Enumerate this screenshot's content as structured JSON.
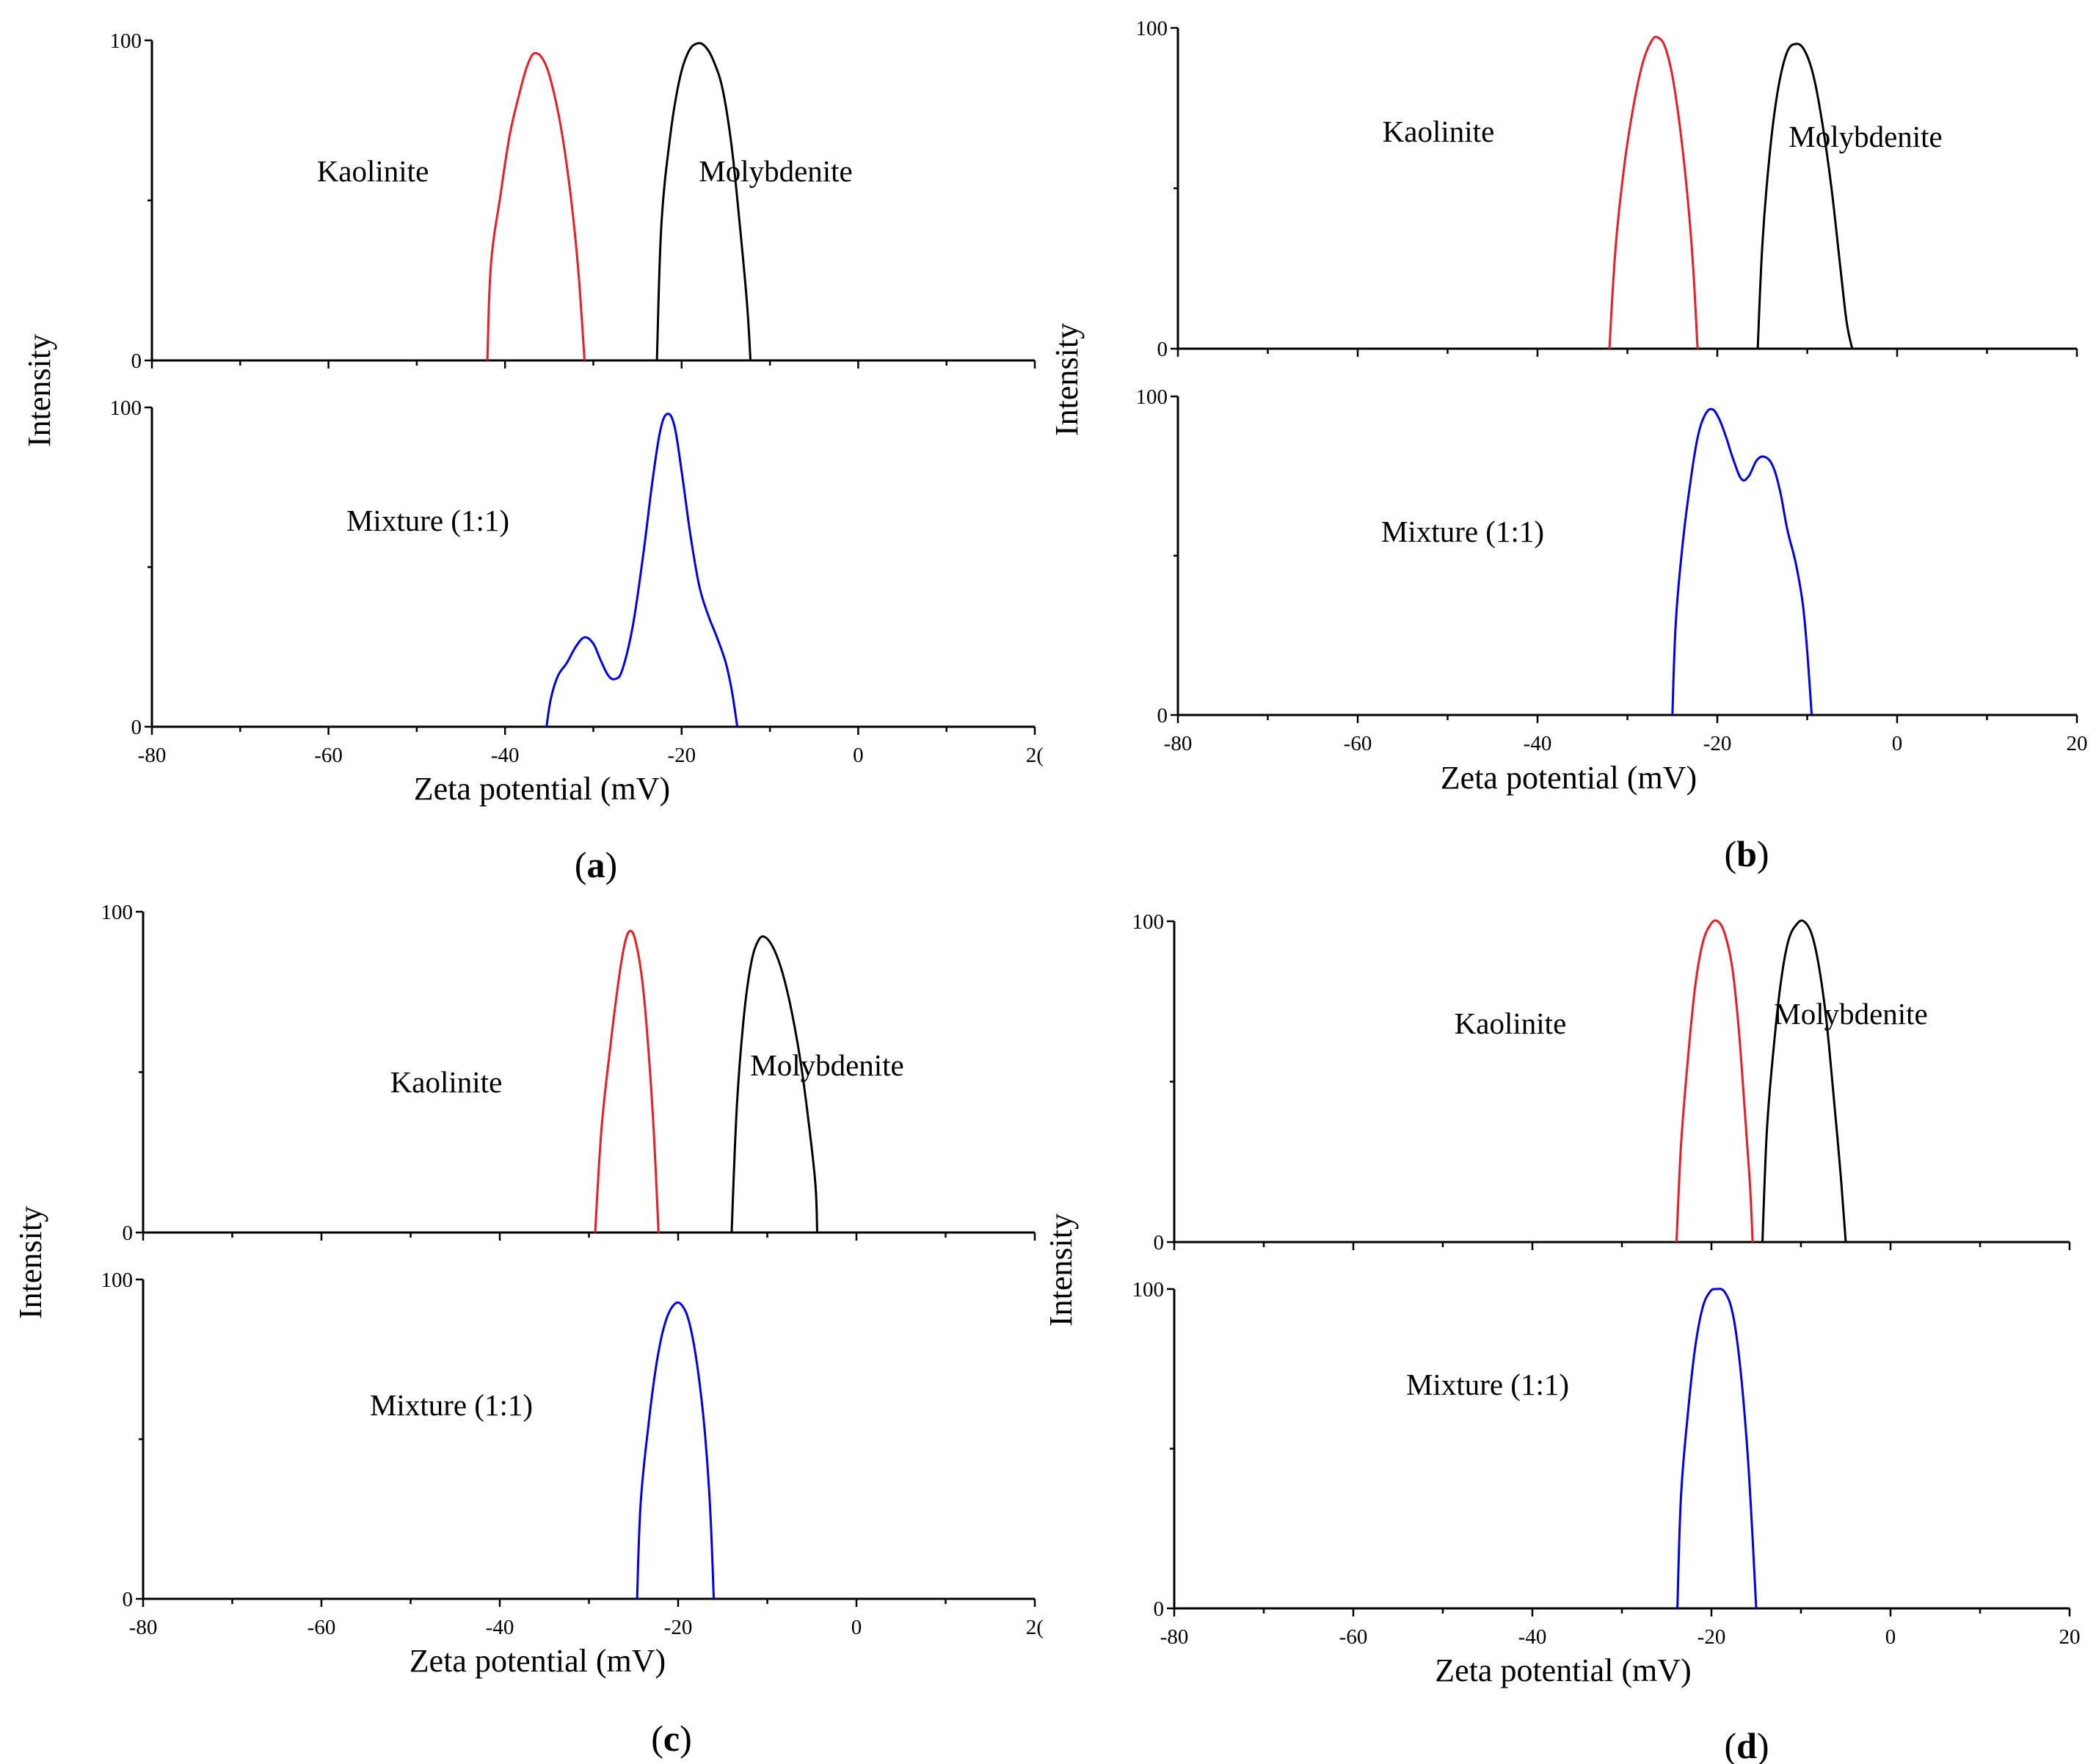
{
  "colors": {
    "kaolinite": "#ed1c24",
    "molybdenite": "#000000",
    "mixture": "#0000ee",
    "axis": "#000000"
  },
  "chart_data": [
    {
      "panel": "a",
      "type": "line",
      "xlabel": "Zeta potential (mV)",
      "ylabel": "Intensity",
      "xlim": [
        -80,
        20
      ],
      "x_tick_labels": [
        "-80",
        "-60",
        "-40",
        "-20",
        "0",
        "2("
      ],
      "top": {
        "ylim": [
          0,
          100
        ],
        "y_tick_labels": [
          "0",
          "100"
        ],
        "series": [
          {
            "name": "Kaolinite",
            "color": "#ed1c24",
            "points": [
              [
                -42,
                0
              ],
              [
                -41.6,
                30
              ],
              [
                -40.5,
                52
              ],
              [
                -39.5,
                70
              ],
              [
                -38.5,
                82
              ],
              [
                -37.5,
                92
              ],
              [
                -36.6,
                96
              ],
              [
                -35.5,
                93
              ],
              [
                -34.5,
                84
              ],
              [
                -33.5,
                70
              ],
              [
                -32.5,
                50
              ],
              [
                -31.7,
                28
              ],
              [
                -31,
                0
              ]
            ]
          },
          {
            "name": "Molybdenite",
            "color": "#000000",
            "points": [
              [
                -22.8,
                0
              ],
              [
                -22.3,
                42
              ],
              [
                -21.3,
                70
              ],
              [
                -20.3,
                87
              ],
              [
                -19.3,
                96
              ],
              [
                -18.3,
                99
              ],
              [
                -17.3,
                98
              ],
              [
                -16.3,
                93
              ],
              [
                -15.3,
                84
              ],
              [
                -14.3,
                66
              ],
              [
                -13.4,
                42
              ],
              [
                -12.6,
                18
              ],
              [
                -12.2,
                0
              ]
            ]
          }
        ]
      },
      "bottom": {
        "ylim": [
          0,
          100
        ],
        "y_tick_labels": [
          "0",
          "100"
        ],
        "series": [
          {
            "name": "Mixture (1:1)",
            "color": "#0000ee",
            "points": [
              [
                -35.3,
                0
              ],
              [
                -34.8,
                9
              ],
              [
                -34,
                16
              ],
              [
                -33,
                20
              ],
              [
                -32,
                25
              ],
              [
                -31,
                28
              ],
              [
                -30,
                26
              ],
              [
                -29.2,
                21
              ],
              [
                -28.3,
                16
              ],
              [
                -27.5,
                15
              ],
              [
                -26.7,
                18
              ],
              [
                -25.5,
                32
              ],
              [
                -24.3,
                55
              ],
              [
                -23.3,
                77
              ],
              [
                -22.4,
                93
              ],
              [
                -21.6,
                98
              ],
              [
                -20.8,
                94
              ],
              [
                -20,
                80
              ],
              [
                -19,
                60
              ],
              [
                -18,
                44
              ],
              [
                -17,
                35
              ],
              [
                -16,
                28
              ],
              [
                -15,
                20
              ],
              [
                -14.3,
                11
              ],
              [
                -13.7,
                0
              ]
            ]
          }
        ]
      },
      "annotations": [
        "Kaolinite",
        "Molybdenite",
        "Mixture (1:1)"
      ],
      "panel_label": "a"
    },
    {
      "panel": "b",
      "type": "line",
      "xlabel": "Zeta potential (mV)",
      "ylabel": "Intensity",
      "xlim": [
        -80,
        20
      ],
      "x_tick_labels": [
        "-80",
        "-60",
        "-40",
        "-20",
        "0",
        "20"
      ],
      "top": {
        "ylim": [
          0,
          100
        ],
        "y_tick_labels": [
          "0",
          "100"
        ],
        "series": [
          {
            "name": "Kaolinite",
            "color": "#ed1c24",
            "points": [
              [
                -32,
                0
              ],
              [
                -31.3,
                32
              ],
              [
                -30.3,
                58
              ],
              [
                -29.3,
                76
              ],
              [
                -28.3,
                89
              ],
              [
                -27.3,
                96
              ],
              [
                -26.6,
                97
              ],
              [
                -25.8,
                94
              ],
              [
                -25,
                85
              ],
              [
                -24.2,
                70
              ],
              [
                -23.4,
                50
              ],
              [
                -22.7,
                26
              ],
              [
                -22.2,
                0
              ]
            ]
          },
          {
            "name": "Molybdenite",
            "color": "#000000",
            "points": [
              [
                -15.5,
                0
              ],
              [
                -15,
                32
              ],
              [
                -14.2,
                60
              ],
              [
                -13.3,
                80
              ],
              [
                -12.3,
                92
              ],
              [
                -11.3,
                95
              ],
              [
                -10.3,
                93
              ],
              [
                -9.3,
                85
              ],
              [
                -8.3,
                70
              ],
              [
                -7.3,
                50
              ],
              [
                -6.3,
                25
              ],
              [
                -5.6,
                8
              ],
              [
                -5,
                0
              ]
            ]
          }
        ]
      },
      "bottom": {
        "ylim": [
          0,
          100
        ],
        "y_tick_labels": [
          "0",
          "100"
        ],
        "series": [
          {
            "name": "Mixture (1:1)",
            "color": "#0000ee",
            "points": [
              [
                -25,
                0
              ],
              [
                -24.6,
                30
              ],
              [
                -23.8,
                55
              ],
              [
                -23,
                73
              ],
              [
                -22.2,
                87
              ],
              [
                -21.4,
                94
              ],
              [
                -20.6,
                96
              ],
              [
                -19.8,
                93
              ],
              [
                -19,
                87
              ],
              [
                -18.2,
                80
              ],
              [
                -17.3,
                74
              ],
              [
                -16.5,
                75
              ],
              [
                -15.6,
                80
              ],
              [
                -14.7,
                81
              ],
              [
                -13.8,
                78
              ],
              [
                -13,
                70
              ],
              [
                -12.2,
                58
              ],
              [
                -11.3,
                48
              ],
              [
                -10.5,
                35
              ],
              [
                -10,
                20
              ],
              [
                -9.5,
                0
              ]
            ]
          }
        ]
      },
      "annotations": [
        "Kaolinite",
        "Molybdenite",
        "Mixture (1:1)"
      ],
      "panel_label": "b"
    },
    {
      "panel": "c",
      "type": "line",
      "xlabel": "Zeta potential (mV)",
      "ylabel": "Intensity",
      "xlim": [
        -80,
        20
      ],
      "x_tick_labels": [
        "-80",
        "-60",
        "-40",
        "-20",
        "0",
        "2("
      ],
      "top": {
        "ylim": [
          0,
          100
        ],
        "y_tick_labels": [
          "0",
          "100"
        ],
        "series": [
          {
            "name": "Kaolinite",
            "color": "#ed1c24",
            "points": [
              [
                -29.3,
                0
              ],
              [
                -28.6,
                32
              ],
              [
                -27.6,
                58
              ],
              [
                -26.6,
                80
              ],
              [
                -25.9,
                91
              ],
              [
                -25.3,
                94
              ],
              [
                -24.7,
                90
              ],
              [
                -24,
                78
              ],
              [
                -23.3,
                56
              ],
              [
                -22.7,
                30
              ],
              [
                -22.2,
                0
              ]
            ]
          },
          {
            "name": "Molybdenite",
            "color": "#000000",
            "points": [
              [
                -14,
                0
              ],
              [
                -13.4,
                40
              ],
              [
                -12.6,
                68
              ],
              [
                -11.8,
                84
              ],
              [
                -11,
                91
              ],
              [
                -10.2,
                92
              ],
              [
                -9.2,
                88
              ],
              [
                -8.2,
                80
              ],
              [
                -7.2,
                68
              ],
              [
                -6.2,
                52
              ],
              [
                -5.3,
                33
              ],
              [
                -4.6,
                15
              ],
              [
                -4.4,
                0
              ]
            ]
          }
        ]
      },
      "bottom": {
        "ylim": [
          0,
          100
        ],
        "y_tick_labels": [
          "0",
          "100"
        ],
        "series": [
          {
            "name": "Mixture (1:1)",
            "color": "#0000ee",
            "points": [
              [
                -24.6,
                0
              ],
              [
                -24.2,
                30
              ],
              [
                -23.3,
                55
              ],
              [
                -22.4,
                74
              ],
              [
                -21.5,
                86
              ],
              [
                -20.5,
                92
              ],
              [
                -19.6,
                92
              ],
              [
                -18.7,
                86
              ],
              [
                -17.8,
                72
              ],
              [
                -17,
                52
              ],
              [
                -16.4,
                28
              ],
              [
                -16,
                0
              ]
            ]
          }
        ]
      },
      "annotations": [
        "Kaolinite",
        "Molybdenite",
        "Mixture (1:1)"
      ],
      "panel_label": "c"
    },
    {
      "panel": "d",
      "type": "line",
      "xlabel": "Zeta potential (mV)",
      "ylabel": "Intensity",
      "xlim": [
        -80,
        20
      ],
      "x_tick_labels": [
        "-80",
        "-60",
        "-40",
        "-20",
        "0",
        "20"
      ],
      "top": {
        "ylim": [
          0,
          100
        ],
        "y_tick_labels": [
          "0",
          "100"
        ],
        "series": [
          {
            "name": "Kaolinite",
            "color": "#ed1c24",
            "points": [
              [
                -23.9,
                0
              ],
              [
                -23.4,
                30
              ],
              [
                -22.6,
                58
              ],
              [
                -21.8,
                80
              ],
              [
                -21,
                93
              ],
              [
                -20.1,
                99
              ],
              [
                -19.3,
                100
              ],
              [
                -18.5,
                96
              ],
              [
                -17.7,
                86
              ],
              [
                -17,
                68
              ],
              [
                -16.3,
                42
              ],
              [
                -15.7,
                18
              ],
              [
                -15.4,
                0
              ]
            ]
          },
          {
            "name": "Molybdenite",
            "color": "#000000",
            "points": [
              [
                -14.3,
                0
              ],
              [
                -13.8,
                35
              ],
              [
                -13,
                62
              ],
              [
                -12.2,
                82
              ],
              [
                -11.4,
                94
              ],
              [
                -10.5,
                99
              ],
              [
                -9.7,
                100
              ],
              [
                -8.8,
                96
              ],
              [
                -8,
                86
              ],
              [
                -7.2,
                70
              ],
              [
                -6.4,
                47
              ],
              [
                -5.6,
                22
              ],
              [
                -5,
                0
              ]
            ]
          }
        ]
      },
      "bottom": {
        "ylim": [
          0,
          100
        ],
        "y_tick_labels": [
          "0",
          "100"
        ],
        "series": [
          {
            "name": "Mixture (1:1)",
            "color": "#0000ee",
            "points": [
              [
                -23.8,
                0
              ],
              [
                -23.4,
                35
              ],
              [
                -22.6,
                62
              ],
              [
                -21.8,
                82
              ],
              [
                -21,
                94
              ],
              [
                -20.2,
                99
              ],
              [
                -19.5,
                100
              ],
              [
                -18.5,
                99
              ],
              [
                -17.6,
                92
              ],
              [
                -16.8,
                76
              ],
              [
                -16,
                50
              ],
              [
                -15.4,
                22
              ],
              [
                -15,
                0
              ]
            ]
          }
        ]
      },
      "annotations": [
        "Kaolinite",
        "Molybdenite",
        "Mixture (1:1)"
      ],
      "panel_label": "d"
    }
  ]
}
